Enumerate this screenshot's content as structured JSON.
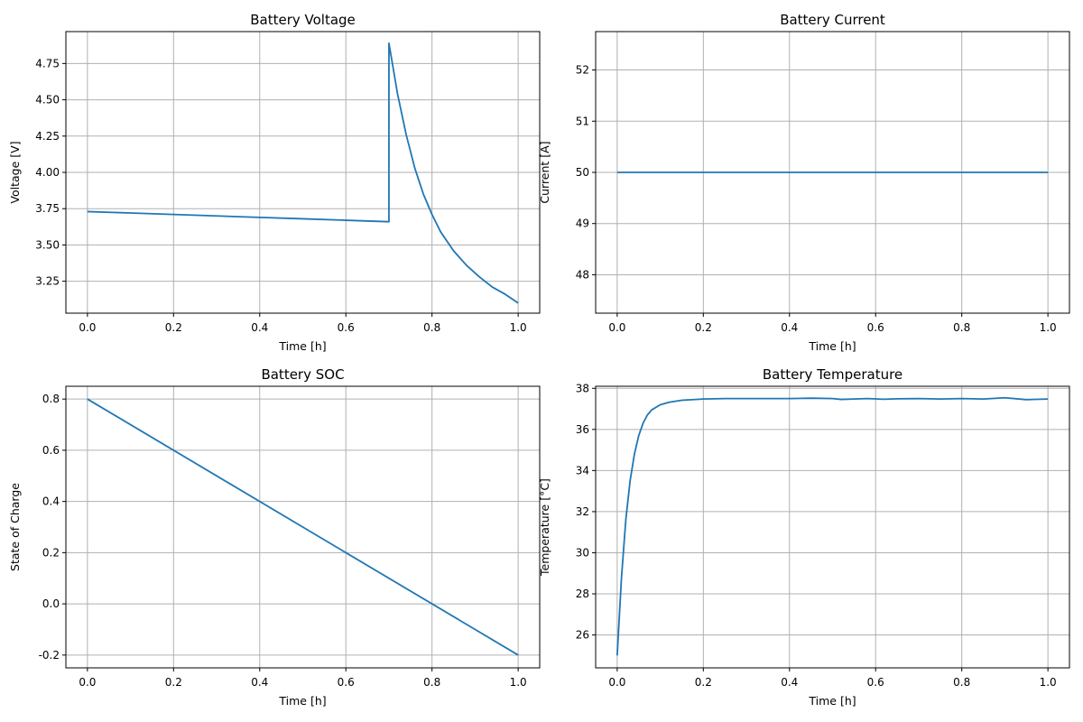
{
  "figure": {
    "background": "#ffffff",
    "series_color": "#1f77b4",
    "grid": true
  },
  "chart_data": [
    {
      "type": "line",
      "title": "Battery Voltage",
      "xlabel": "Time [h]",
      "ylabel": "Voltage [V]",
      "xlim": [
        -0.05,
        1.05
      ],
      "ylim": [
        3.03,
        4.97
      ],
      "xticks": [
        0.0,
        0.2,
        0.4,
        0.6,
        0.8,
        1.0
      ],
      "xticklabels": [
        "0.0",
        "0.2",
        "0.4",
        "0.6",
        "0.8",
        "1.0"
      ],
      "yticks": [
        3.25,
        3.5,
        3.75,
        4.0,
        4.25,
        4.5,
        4.75
      ],
      "yticklabels": [
        "3.25",
        "3.50",
        "3.75",
        "4.00",
        "4.25",
        "4.50",
        "4.75"
      ],
      "grid": true,
      "series": [
        {
          "x": [
            0.0,
            0.1,
            0.2,
            0.3,
            0.4,
            0.5,
            0.6,
            0.7,
            0.7,
            0.72,
            0.74,
            0.76,
            0.78,
            0.8,
            0.82,
            0.85,
            0.88,
            0.91,
            0.94,
            0.97,
            1.0
          ],
          "y": [
            3.73,
            3.72,
            3.71,
            3.7,
            3.69,
            3.68,
            3.67,
            3.66,
            4.89,
            4.54,
            4.26,
            4.03,
            3.85,
            3.71,
            3.59,
            3.46,
            3.36,
            3.28,
            3.21,
            3.16,
            3.1
          ]
        }
      ]
    },
    {
      "type": "line",
      "title": "Battery Current",
      "xlabel": "Time [h]",
      "ylabel": "Current [A]",
      "xlim": [
        -0.05,
        1.05
      ],
      "ylim": [
        47.25,
        52.75
      ],
      "xticks": [
        0.0,
        0.2,
        0.4,
        0.6,
        0.8,
        1.0
      ],
      "xticklabels": [
        "0.0",
        "0.2",
        "0.4",
        "0.6",
        "0.8",
        "1.0"
      ],
      "yticks": [
        48,
        49,
        50,
        51,
        52
      ],
      "yticklabels": [
        "48",
        "49",
        "50",
        "51",
        "52"
      ],
      "grid": true,
      "series": [
        {
          "x": [
            0.0,
            1.0
          ],
          "y": [
            50,
            50
          ]
        }
      ]
    },
    {
      "type": "line",
      "title": "Battery SOC",
      "xlabel": "Time [h]",
      "ylabel": "State of Charge",
      "xlim": [
        -0.05,
        1.05
      ],
      "ylim": [
        -0.25,
        0.85
      ],
      "xticks": [
        0.0,
        0.2,
        0.4,
        0.6,
        0.8,
        1.0
      ],
      "xticklabels": [
        "0.0",
        "0.2",
        "0.4",
        "0.6",
        "0.8",
        "1.0"
      ],
      "yticks": [
        -0.2,
        0.0,
        0.2,
        0.4,
        0.6,
        0.8
      ],
      "yticklabels": [
        "-0.2",
        "0.0",
        "0.2",
        "0.4",
        "0.6",
        "0.8"
      ],
      "grid": true,
      "series": [
        {
          "x": [
            0.0,
            1.0
          ],
          "y": [
            0.8,
            -0.2
          ]
        }
      ]
    },
    {
      "type": "line",
      "title": "Battery Temperature",
      "xlabel": "Time [h]",
      "ylabel": "Temperature [°C]",
      "xlim": [
        -0.05,
        1.05
      ],
      "ylim": [
        24.4,
        38.1
      ],
      "xticks": [
        0.0,
        0.2,
        0.4,
        0.6,
        0.8,
        1.0
      ],
      "xticklabels": [
        "0.0",
        "0.2",
        "0.4",
        "0.6",
        "0.8",
        "1.0"
      ],
      "yticks": [
        26,
        28,
        30,
        32,
        34,
        36,
        38
      ],
      "yticklabels": [
        "26",
        "28",
        "30",
        "32",
        "34",
        "36",
        "38"
      ],
      "grid": true,
      "series": [
        {
          "x": [
            0.0,
            0.01,
            0.02,
            0.03,
            0.04,
            0.05,
            0.06,
            0.07,
            0.08,
            0.1,
            0.12,
            0.15,
            0.2,
            0.25,
            0.3,
            0.35,
            0.4,
            0.45,
            0.5,
            0.52,
            0.55,
            0.58,
            0.62,
            0.65,
            0.7,
            0.75,
            0.8,
            0.85,
            0.9,
            0.95,
            1.0
          ],
          "y": [
            25.0,
            28.8,
            31.6,
            33.5,
            34.8,
            35.7,
            36.3,
            36.7,
            36.95,
            37.2,
            37.32,
            37.42,
            37.48,
            37.5,
            37.5,
            37.5,
            37.5,
            37.52,
            37.5,
            37.46,
            37.48,
            37.5,
            37.47,
            37.49,
            37.5,
            37.48,
            37.5,
            37.48,
            37.54,
            37.45,
            37.48
          ]
        }
      ]
    }
  ]
}
